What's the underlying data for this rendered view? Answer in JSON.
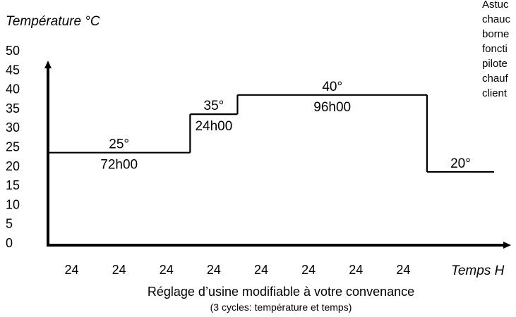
{
  "chart_data": {
    "type": "line",
    "title": "",
    "ylabel": "Température °C",
    "xlabel": "Temps H",
    "ylim": [
      0,
      50
    ],
    "yticks": [
      "50",
      "45",
      "40",
      "35",
      "30",
      "25",
      "20",
      "15",
      "10",
      "5",
      "0"
    ],
    "xticks": [
      "24",
      "24",
      "24",
      "24",
      "24",
      "24",
      "24",
      "24"
    ],
    "x_units": "hours",
    "steps": [
      {
        "x_start": 0,
        "x_end": 72,
        "y": 23.5,
        "temp_label": "25°",
        "time_label": "72h00"
      },
      {
        "x_start": 72,
        "x_end": 96,
        "y": 33.5,
        "temp_label": "35°",
        "time_label": "24h00"
      },
      {
        "x_start": 96,
        "x_end": 192,
        "y": 38.5,
        "temp_label": "40°",
        "time_label": "96h00"
      },
      {
        "x_start": 192,
        "x_end": 226,
        "y": 18.5,
        "temp_label": "20°",
        "time_label": ""
      }
    ],
    "caption": "Réglage d’usine modifiable à votre convenance",
    "caption_sub": "(3 cycles: température et temps)",
    "line_color": "#000000"
  },
  "side_note_lines": [
    "Astuc",
    "chauc",
    "borne",
    "foncti",
    "pilote",
    "chauf",
    "client"
  ]
}
